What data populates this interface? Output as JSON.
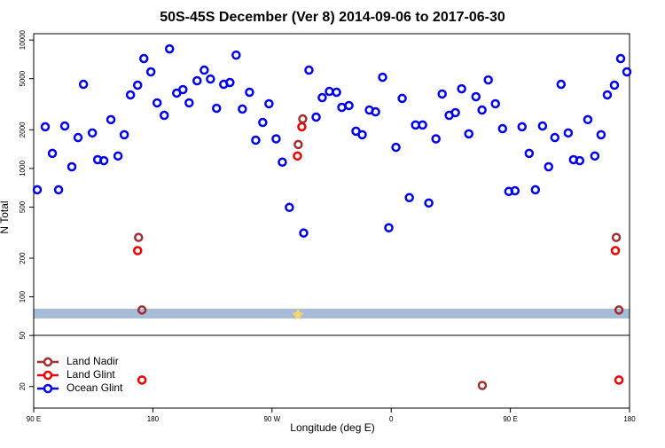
{
  "chart_data": {
    "type": "scatter",
    "title": "50S-45S December (Ver 8)   2014-09-06 to 2017-06-30",
    "xlabel": "Longitude (deg E)",
    "ylabel": "N Total",
    "log_y": true,
    "xlim": [
      90,
      540
    ],
    "xticks": [
      {
        "value": 90,
        "label": "90 E"
      },
      180,
      {
        "value": 270,
        "label": "90 W"
      },
      {
        "value": 360,
        "label": "0"
      },
      {
        "value": 450,
        "label": "90 E"
      },
      {
        "value": 540,
        "label": "180"
      }
    ],
    "ylim": [
      13.6,
      11200
    ],
    "yticks": [
      20,
      50,
      100,
      200,
      500,
      1000,
      2000,
      5000,
      10000
    ],
    "legend": "bottom-left",
    "series": [
      {
        "name": "Land Nadir",
        "color": "#a03030",
        "x": [
          169.2,
          293.2,
          289.8,
          530,
          171.8,
          532,
          428.8
        ],
        "values": [
          290,
          2430,
          1535,
          290,
          79,
          79,
          20.4
        ]
      },
      {
        "name": "Land Glint",
        "color": "#ee0000",
        "x": [
          168.5,
          292.5,
          289.2,
          529.3,
          171.8,
          532
        ],
        "values": [
          229,
          2110,
          1250,
          229,
          22.5,
          22.5
        ]
      },
      {
        "name": "Ocean Glint",
        "color": "#0000ee",
        "x": [
          92.7,
          98.7,
          104.1,
          108.8,
          113.5,
          118.8,
          123.5,
          127.6,
          134.3,
          138.3,
          143.0,
          148.3,
          153.7,
          158.4,
          163.1,
          168.5,
          173.2,
          178.5,
          183.2,
          188.6,
          192.6,
          198.0,
          202.7,
          207.4,
          213.4,
          218.8,
          223.5,
          228.1,
          233.5,
          238.2,
          242.9,
          247.6,
          253.0,
          257.7,
          263.0,
          267.7,
          273.1,
          277.8,
          283.1,
          293.9,
          297.9,
          303.3,
          307.9,
          313.3,
          318.7,
          322.7,
          328.1,
          333.4,
          338.1,
          343.5,
          348.2,
          353.5,
          358.2,
          363.6,
          368.3,
          373.7,
          378.4,
          383.7,
          388.4,
          393.8,
          398.5,
          403.8,
          408.5,
          413.2,
          418.6,
          424.0,
          428.6,
          433.3,
          438.7,
          444.1,
          448.8,
          453.5,
          458.8,
          464.2,
          468.9,
          474.3,
          478.9,
          483.6,
          488.3,
          493.7,
          497.7,
          502.4,
          508.5,
          513.8,
          518.5,
          523.2,
          528.6,
          533.3,
          538.0
        ],
        "values": [
          682,
          2110,
          1310,
          682,
          2140,
          1030,
          1740,
          4520,
          1890,
          1170,
          1150,
          2400,
          1250,
          1830,
          3740,
          4450,
          7170,
          5650,
          3240,
          2590,
          8530,
          3860,
          4110,
          3240,
          4820,
          5830,
          4970,
          2940,
          4520,
          4670,
          7630,
          2900,
          3920,
          1660,
          2280,
          3190,
          1700,
          1120,
          497,
          314,
          5830,
          2510,
          3560,
          3980,
          3920,
          2990,
          3090,
          1950,
          1830,
          2850,
          2760,
          5130,
          345,
          1460,
          3510,
          592,
          2180,
          2180,
          538,
          1700,
          3800,
          2590,
          2720,
          4170,
          1860,
          3620,
          2850,
          4890,
          3190,
          2040,
          662,
          670,
          2110,
          1310,
          682,
          2140,
          1030,
          1740,
          4520,
          1890,
          1170,
          1150,
          2400,
          1250,
          1830,
          3740,
          4450,
          7170,
          5650
        ]
      }
    ]
  }
}
